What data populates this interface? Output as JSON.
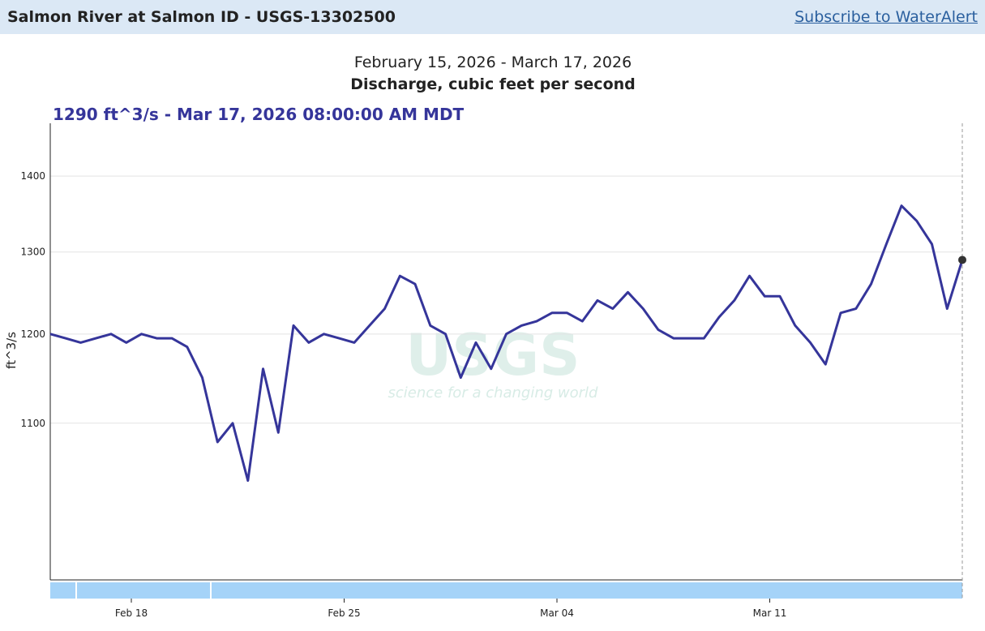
{
  "header": {
    "title": "Salmon River at Salmon ID - USGS-13302500",
    "link": "Subscribe to WaterAlert"
  },
  "chart_data": {
    "type": "line",
    "subtitle": "February 15, 2026 - March 17, 2026",
    "title": "Discharge, cubic feet per second",
    "readout": "1290 ft^3/s - Mar 17, 2026 08:00:00 AM MDT",
    "y_label": "ft^3/s",
    "watermark": {
      "logo": "USGS",
      "tagline": "science for a changing world"
    },
    "log_scale": true,
    "grid": true,
    "xlim": [
      "2026-02-15T08:00",
      "2026-03-17T08:00"
    ],
    "xticks": [
      {
        "value": "2026-02-18",
        "label": "Feb 18"
      },
      {
        "value": "2026-02-25",
        "label": "Feb 25"
      },
      {
        "value": "2026-03-04",
        "label": "Mar 04"
      },
      {
        "value": "2026-03-11",
        "label": "Mar 11"
      }
    ],
    "ylim": [
      944,
      1474
    ],
    "yticks": [
      1100,
      1200,
      1300,
      1400
    ],
    "x": [
      "2026-02-15T08:00",
      "2026-02-15T20:00",
      "2026-02-16T08:00",
      "2026-02-16T20:00",
      "2026-02-17T08:00",
      "2026-02-17T20:00",
      "2026-02-18T08:00",
      "2026-02-18T20:00",
      "2026-02-19T08:00",
      "2026-02-19T20:00",
      "2026-02-20T08:00",
      "2026-02-20T20:00",
      "2026-02-21T08:00",
      "2026-02-21T20:00",
      "2026-02-22T08:00",
      "2026-02-22T20:00",
      "2026-02-23T08:00",
      "2026-02-23T20:00",
      "2026-02-24T08:00",
      "2026-02-24T20:00",
      "2026-02-25T08:00",
      "2026-02-25T20:00",
      "2026-02-26T08:00",
      "2026-02-26T20:00",
      "2026-02-27T08:00",
      "2026-02-27T20:00",
      "2026-02-28T08:00",
      "2026-02-28T20:00",
      "2026-03-01T08:00",
      "2026-03-01T20:00",
      "2026-03-02T08:00",
      "2026-03-02T20:00",
      "2026-03-03T08:00",
      "2026-03-03T20:00",
      "2026-03-04T08:00",
      "2026-03-04T20:00",
      "2026-03-05T08:00",
      "2026-03-05T20:00",
      "2026-03-06T08:00",
      "2026-03-06T20:00",
      "2026-03-07T08:00",
      "2026-03-07T20:00",
      "2026-03-08T08:00",
      "2026-03-08T20:00",
      "2026-03-09T08:00",
      "2026-03-09T20:00",
      "2026-03-10T08:00",
      "2026-03-10T20:00",
      "2026-03-11T08:00",
      "2026-03-11T20:00",
      "2026-03-12T08:00",
      "2026-03-12T20:00",
      "2026-03-13T08:00",
      "2026-03-13T20:00",
      "2026-03-14T08:00",
      "2026-03-14T20:00",
      "2026-03-15T08:00",
      "2026-03-15T20:00",
      "2026-03-16T08:00",
      "2026-03-16T20:00",
      "2026-03-17T08:00"
    ],
    "series": [
      {
        "name": "Discharge",
        "color": "#35359a",
        "values": [
          1200,
          1195,
          1190,
          1195,
          1200,
          1190,
          1200,
          1195,
          1195,
          1185,
          1150,
          1080,
          1100,
          1040,
          1160,
          1090,
          1210,
          1190,
          1200,
          1195,
          1190,
          1210,
          1230,
          1270,
          1260,
          1210,
          1200,
          1150,
          1190,
          1160,
          1200,
          1210,
          1215,
          1225,
          1225,
          1215,
          1240,
          1230,
          1250,
          1230,
          1205,
          1195,
          1195,
          1195,
          1220,
          1240,
          1270,
          1245,
          1245,
          1210,
          1190,
          1165,
          1225,
          1230,
          1260,
          1310,
          1360,
          1340,
          1310,
          1230,
          1290
        ]
      }
    ]
  }
}
